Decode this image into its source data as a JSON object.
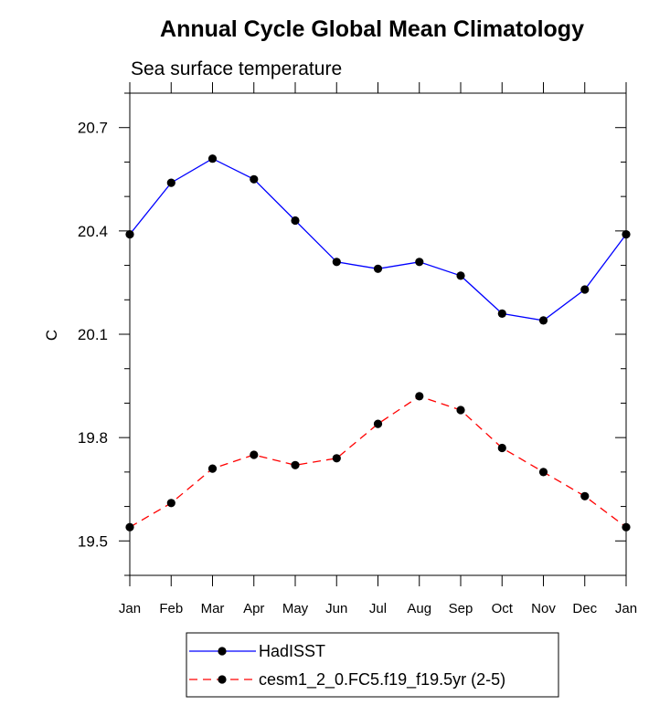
{
  "chart_data": {
    "type": "line",
    "title": "Annual Cycle Global Mean Climatology",
    "subtitle": "Sea surface temperature",
    "xlabel": "",
    "ylabel": "C",
    "categories": [
      "Jan",
      "Feb",
      "Mar",
      "Apr",
      "May",
      "Jun",
      "Jul",
      "Aug",
      "Sep",
      "Oct",
      "Nov",
      "Dec",
      "Jan"
    ],
    "ylim": [
      19.4,
      20.8
    ],
    "yticks": [
      "19.5",
      "19.8",
      "20.1",
      "20.4",
      "20.7"
    ],
    "grid": false,
    "legend_position": "bottom-center",
    "series": [
      {
        "name": "HadISST",
        "color": "#0000ff",
        "line_style": "solid",
        "marker": "filled-circle",
        "values": [
          20.39,
          20.54,
          20.61,
          20.55,
          20.43,
          20.31,
          20.29,
          20.31,
          20.27,
          20.16,
          20.14,
          20.23,
          20.39
        ]
      },
      {
        "name": "cesm1_2_0.FC5.f19_f19.5yr (2-5)",
        "color": "#ff0000",
        "line_style": "dashed",
        "marker": "filled-circle",
        "values": [
          19.54,
          19.61,
          19.71,
          19.75,
          19.72,
          19.74,
          19.84,
          19.92,
          19.88,
          19.77,
          19.7,
          19.63,
          19.54
        ]
      }
    ]
  }
}
